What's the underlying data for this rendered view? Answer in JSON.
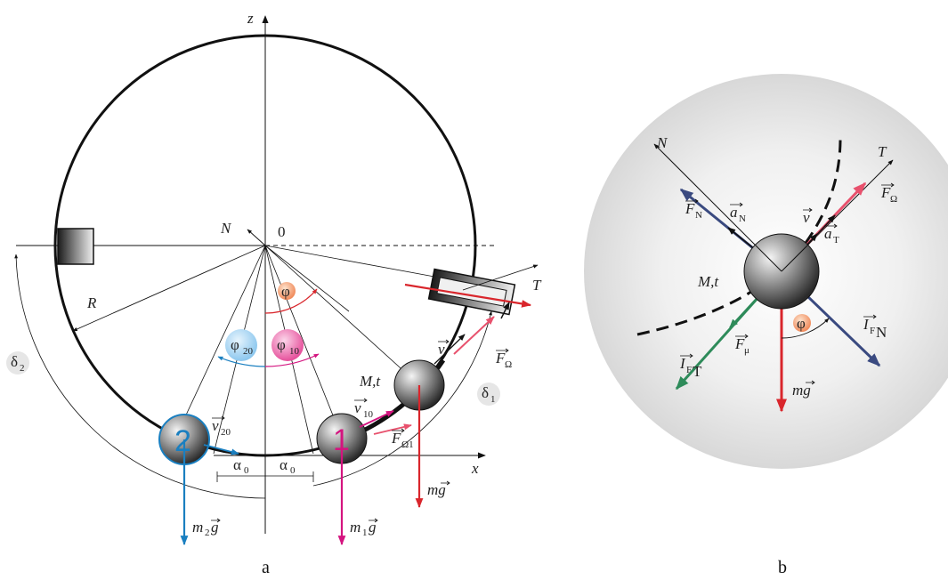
{
  "captions": {
    "a": "a",
    "b": "b"
  },
  "axes": {
    "z": "z",
    "x": "x",
    "origin": "0"
  },
  "labels_a": {
    "N": "N",
    "T": "T",
    "R": "R",
    "delta1": "δ",
    "delta1_sub": "1",
    "delta2": "δ",
    "delta2_sub": "2",
    "phi": "φ",
    "phi20": "φ",
    "phi20_sub": "20",
    "phi10": "φ",
    "phi10_sub": "10",
    "Mt": "M,t",
    "v": "v",
    "v10": "v",
    "v10_sub": "10",
    "v20": "v",
    "v20_sub": "20",
    "F_omega": "F",
    "F_omega_sub": "Ω",
    "F_omega1": "F",
    "F_omega1_sub": "Ω1",
    "mg": "mg",
    "m1g": "m",
    "m1g_sub": "1",
    "m1g_g": "g",
    "m2g": "m",
    "m2g_sub": "2",
    "m2g_g": "g",
    "alpha0_left": "α",
    "alpha0_left_sub": "0",
    "alpha0_right": "α",
    "alpha0_right_sub": "0",
    "ball1": "1",
    "ball2": "2"
  },
  "labels_b": {
    "N": "N",
    "T": "T",
    "Mt": "M,t",
    "F_N": "F",
    "F_N_sub": "N",
    "a_N": "a",
    "a_N_sub": "N",
    "v": "v",
    "a_T": "a",
    "a_T_sub": "T",
    "F_omega": "F",
    "F_omega_sub": "Ω",
    "I_FN": "I",
    "I_FN_sub": "F",
    "I_FN_subsub": "N",
    "F_mu": "F",
    "F_mu_sub": "μ",
    "I_FT": "I",
    "I_FT_sub": "F",
    "I_FT_subsub": "T",
    "mg": "mg",
    "phi": "φ"
  },
  "colors": {
    "red": "#d9262c",
    "magenta": "#d4147f",
    "blue": "#1a7fc0",
    "navy": "#3a4a80",
    "green": "#2e8b5a",
    "pink": "#e8516d"
  }
}
